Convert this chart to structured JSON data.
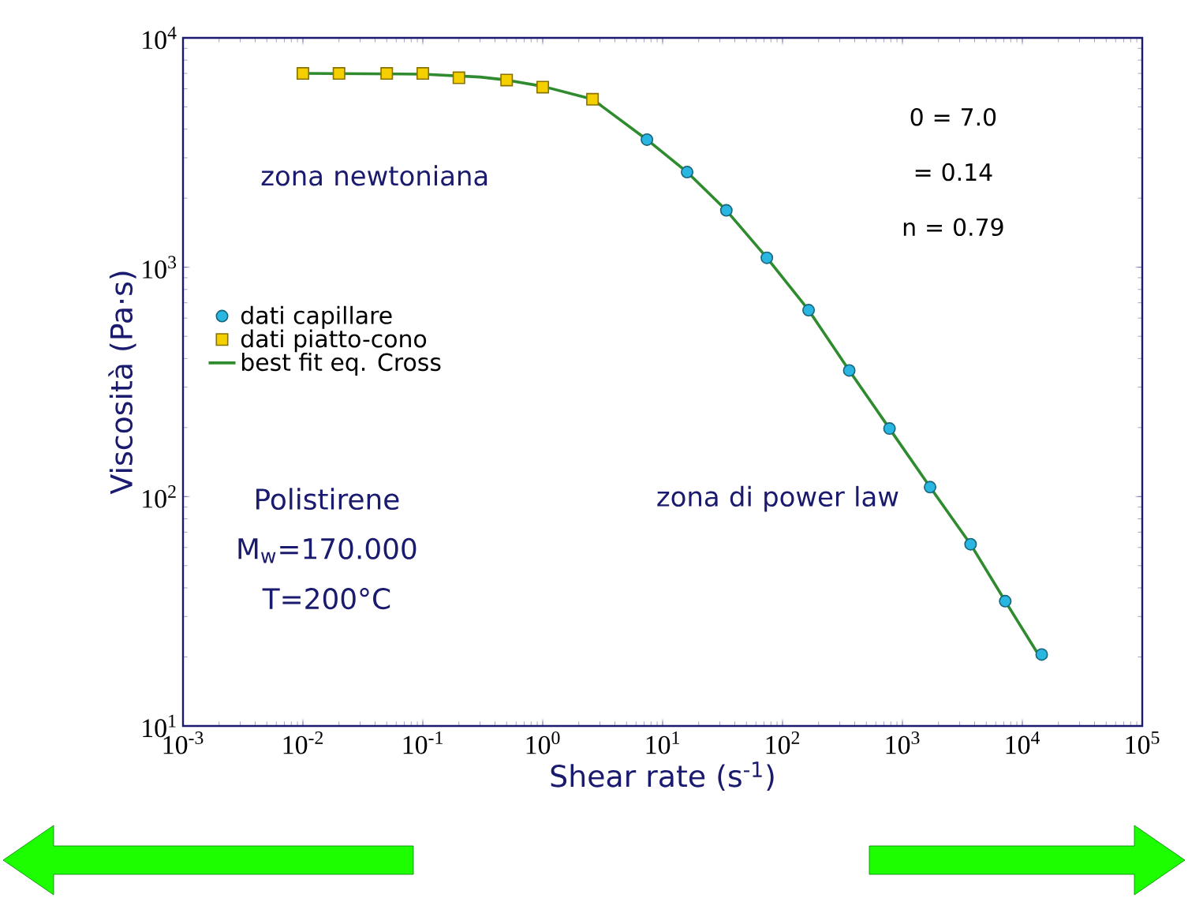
{
  "chart_data": {
    "type": "scatter",
    "xlabel": "Shear rate (s$^{-1}$)",
    "ylabel": "Viscosità (Pa·s)",
    "log": "xy",
    "xlim": [
      0.001,
      100000
    ],
    "ylim": [
      10,
      10000
    ],
    "xticks": [
      {
        "value": 0.001,
        "label": "10$^{-3}$"
      },
      {
        "value": 0.01,
        "label": "10$^{-2}$"
      },
      {
        "value": 0.1,
        "label": "10$^{-1}$"
      },
      {
        "value": 1,
        "label": "10$^{0}$"
      },
      {
        "value": 10,
        "label": "10$^{1}$"
      },
      {
        "value": 100,
        "label": "10$^{2}$"
      },
      {
        "value": 1000,
        "label": "10$^{3}$"
      },
      {
        "value": 10000,
        "label": "10$^{4}$"
      },
      {
        "value": 100000,
        "label": "10$^{5}$"
      }
    ],
    "yticks": [
      {
        "value": 10,
        "label": "10$^{1}$"
      },
      {
        "value": 100,
        "label": "10$^{2}$"
      },
      {
        "value": 1000,
        "label": "10$^{3}$"
      },
      {
        "value": 10000,
        "label": "10$^{4}$"
      }
    ],
    "grid": false,
    "legend": "left",
    "series": [
      {
        "name": "dati capillare",
        "marker": "circle",
        "color": "#29b6e0",
        "x": [
          7.4,
          16,
          34,
          74,
          165,
          360,
          780,
          1700,
          3700,
          7200,
          14500
        ],
        "values": [
          3600,
          2600,
          1770,
          1100,
          650,
          355,
          198,
          110,
          62,
          35,
          20.5
        ]
      },
      {
        "name": "dati piatto-cono",
        "marker": "square",
        "color": "#f5d000",
        "x": [
          0.01,
          0.02,
          0.05,
          0.1,
          0.2,
          0.5,
          1,
          2.6
        ],
        "values": [
          7000,
          7000,
          7000,
          7000,
          6700,
          6550,
          6100,
          5400
        ]
      },
      {
        "name": "best fit eq. Cross",
        "type": "line",
        "marker": "none",
        "line_style": "solid",
        "color": "#2e8b2e",
        "x": [
          0.01,
          0.1,
          0.3,
          0.5,
          1,
          2.6,
          7.4,
          16,
          34,
          74,
          165,
          360,
          780,
          1700,
          3700,
          7200,
          14000
        ],
        "values": [
          7000,
          6950,
          6750,
          6550,
          6150,
          5400,
          3600,
          2600,
          1770,
          1100,
          650,
          355,
          198,
          110,
          62,
          35,
          20
        ]
      }
    ],
    "annotations": [
      "zona newtoniana",
      "zona di power law",
      "Polistirene",
      "M$_{w}$=170.000",
      "T=200°C",
      "0 = 7.0",
      "= 0.14",
      "n = 0.79"
    ]
  }
}
